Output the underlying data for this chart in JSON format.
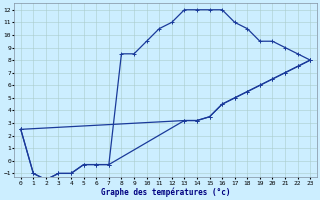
{
  "xlabel": "Graphe des températures (°c)",
  "background_color": "#cceeff",
  "grid_color": "#aacccc",
  "line_color": "#1a3a9a",
  "xlim_min": -0.5,
  "xlim_max": 23.5,
  "ylim_min": -1.3,
  "ylim_max": 12.5,
  "xticks": [
    0,
    1,
    2,
    3,
    4,
    5,
    6,
    7,
    8,
    9,
    10,
    11,
    12,
    13,
    14,
    15,
    16,
    17,
    18,
    19,
    20,
    21,
    22,
    23
  ],
  "yticks": [
    -1,
    0,
    1,
    2,
    3,
    4,
    5,
    6,
    7,
    8,
    9,
    10,
    11,
    12
  ],
  "curve_upper_x": [
    0,
    1,
    2,
    3,
    4,
    5,
    6,
    7,
    8,
    9,
    10,
    11,
    12,
    13,
    14,
    15,
    16,
    17,
    18,
    19,
    20,
    21,
    22,
    23
  ],
  "curve_upper_y": [
    2.5,
    -1,
    -1.5,
    -1,
    -1,
    -0.3,
    -0.3,
    -0.3,
    8.5,
    8.5,
    9.5,
    10.5,
    11,
    12,
    12,
    12,
    12,
    11,
    10.5,
    9.5,
    9.5,
    9,
    8.5,
    8
  ],
  "curve_lower_x": [
    0,
    1,
    2,
    3,
    4,
    5,
    6,
    7,
    13,
    14,
    15,
    16,
    17,
    18,
    19,
    20,
    21,
    22,
    23
  ],
  "curve_lower_y": [
    2.5,
    -1,
    -1.5,
    -1,
    -1,
    -0.3,
    -0.3,
    -0.3,
    3.2,
    3.2,
    3.5,
    4.5,
    5,
    5.5,
    6,
    6.5,
    7,
    7.5,
    8
  ],
  "curve_mid_x": [
    0,
    13,
    14,
    15,
    16,
    17,
    18,
    19,
    20,
    21,
    22,
    23
  ],
  "curve_mid_y": [
    2.5,
    3.2,
    3.2,
    3.5,
    4.5,
    5,
    5.5,
    6,
    6.5,
    7,
    7.5,
    8
  ]
}
